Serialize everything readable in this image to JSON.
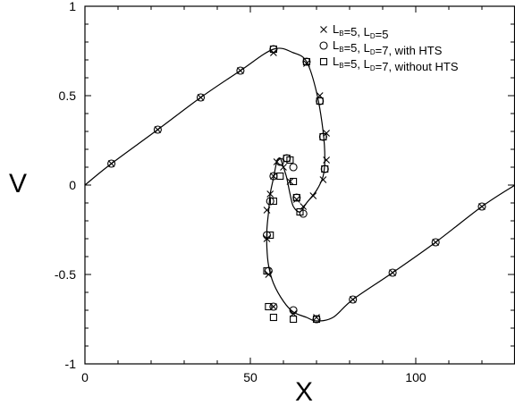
{
  "chart_data": {
    "type": "scatter",
    "xlabel": "X",
    "ylabel": "V",
    "xlim": [
      0,
      130
    ],
    "ylim": [
      -1,
      1
    ],
    "x_ticks": [
      0,
      50,
      100
    ],
    "y_ticks": [
      -1,
      -0.5,
      0,
      0.5,
      1
    ],
    "x_tick_labels": [
      "0",
      "50",
      "100"
    ],
    "y_tick_labels": [
      "-1",
      "-0.5",
      "0",
      "0.5",
      "1"
    ],
    "grid": false,
    "legend_position": "top-right",
    "curve": {
      "x": [
        0,
        8,
        22,
        35,
        47,
        57,
        63,
        67,
        70,
        72,
        72.5,
        72,
        70,
        67,
        65,
        63,
        62,
        61,
        60,
        59,
        58,
        57,
        56,
        55.5,
        55,
        55,
        55.5,
        57,
        60,
        63,
        67,
        70,
        75,
        81,
        93,
        106,
        120,
        130
      ],
      "y": [
        0,
        0.12,
        0.31,
        0.49,
        0.64,
        0.76,
        0.74,
        0.69,
        0.52,
        0.3,
        0.15,
        0.05,
        -0.03,
        -0.1,
        -0.15,
        -0.12,
        -0.05,
        0.04,
        0.1,
        0.15,
        0.13,
        0.04,
        -0.05,
        -0.15,
        -0.25,
        -0.35,
        -0.45,
        -0.55,
        -0.65,
        -0.71,
        -0.74,
        -0.76,
        -0.74,
        -0.64,
        -0.49,
        -0.32,
        -0.12,
        0
      ]
    },
    "series": [
      {
        "name": "L_B=5, L_D=5",
        "marker": "x",
        "x": [
          8,
          22,
          35,
          47,
          57,
          67,
          71,
          73,
          73,
          72,
          69,
          66,
          64,
          62,
          60,
          58,
          57,
          56,
          55,
          55,
          55.5,
          57,
          63,
          70,
          81,
          93,
          106,
          120
        ],
        "y": [
          0.12,
          0.31,
          0.49,
          0.64,
          0.74,
          0.68,
          0.5,
          0.29,
          0.14,
          0.03,
          -0.06,
          -0.12,
          -0.08,
          0.02,
          0.1,
          0.13,
          0.05,
          -0.05,
          -0.14,
          -0.3,
          -0.5,
          -0.68,
          -0.72,
          -0.74,
          -0.64,
          -0.49,
          -0.32,
          -0.12
        ]
      },
      {
        "name": "L_B=5, L_D=7, with HTS",
        "marker": "circle",
        "x": [
          8,
          22,
          35,
          47,
          57,
          67,
          71,
          72,
          72.5,
          66,
          64,
          63,
          61,
          59,
          57,
          56,
          55,
          55.5,
          57,
          63,
          70,
          81,
          93,
          106,
          120
        ],
        "y": [
          0.12,
          0.31,
          0.49,
          0.64,
          0.76,
          0.69,
          0.47,
          0.27,
          0.09,
          -0.16,
          -0.07,
          0.1,
          0.15,
          0.13,
          0.05,
          -0.09,
          -0.28,
          -0.48,
          -0.68,
          -0.7,
          -0.75,
          -0.64,
          -0.49,
          -0.32,
          -0.12
        ]
      },
      {
        "name": "L_B=5, L_D=7, without HTS",
        "marker": "square",
        "x": [
          57,
          67,
          71,
          72,
          72.5,
          65,
          64,
          63,
          62,
          61,
          59,
          57,
          56,
          55,
          55.5,
          57,
          63,
          70
        ],
        "y": [
          0.76,
          0.69,
          0.47,
          0.27,
          0.09,
          -0.15,
          -0.07,
          0.02,
          0.14,
          0.15,
          0.05,
          -0.09,
          -0.28,
          -0.48,
          -0.68,
          -0.74,
          -0.75,
          -0.75
        ],
        "visible_x_note": ""
      }
    ]
  }
}
